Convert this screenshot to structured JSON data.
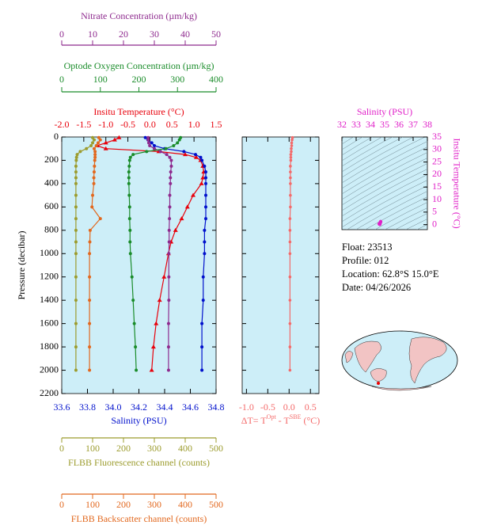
{
  "chart_data": [
    {
      "type": "line",
      "ylabel": "Pressure (decibar)",
      "ylim": [
        0,
        2200
      ],
      "y_inverted": true,
      "yticks": [
        0,
        200,
        400,
        600,
        800,
        1000,
        1200,
        1400,
        1600,
        1800,
        2000,
        2200
      ],
      "y": [
        5,
        25,
        50,
        75,
        100,
        125,
        150,
        175,
        200,
        250,
        300,
        350,
        400,
        500,
        600,
        700,
        800,
        900,
        1000,
        1200,
        1400,
        1600,
        1800,
        2000
      ],
      "background": "#cdeef8",
      "series": [
        {
          "label": "Insitu Temperature (°C)",
          "color": "#e8000b",
          "marker": "triangle",
          "axis_position": "top",
          "xlim": [
            -2,
            1.5
          ],
          "xticks": [
            {
              "value": -2,
              "label": "-2.0"
            },
            -1.5,
            {
              "value": -1,
              "label": "-1.0"
            },
            -0.5,
            {
              "value": 0,
              "label": "0.0"
            },
            0.5,
            {
              "value": 1,
              "label": "1.0"
            },
            1.5
          ],
          "values": [
            -0.7,
            -0.8,
            -1.0,
            -1.2,
            -1.0,
            0.2,
            0.8,
            1.05,
            1.15,
            1.2,
            1.22,
            1.2,
            1.17,
            0.98,
            0.85,
            0.72,
            0.58,
            0.48,
            0.42,
            0.32,
            0.22,
            0.14,
            0.08,
            0.04
          ]
        },
        {
          "label": "Salinity (PSU)",
          "color": "#0010cc",
          "marker": "circle",
          "axis_position": "bottom",
          "xlim": [
            33.6,
            34.8
          ],
          "xticks": [
            33.6,
            33.8,
            {
              "value": 34,
              "label": "34.0"
            },
            34.2,
            34.4,
            34.6,
            34.8
          ],
          "values": [
            34.25,
            34.27,
            34.3,
            34.32,
            34.4,
            34.55,
            34.64,
            34.68,
            34.69,
            34.71,
            34.72,
            34.72,
            34.72,
            34.72,
            34.72,
            34.72,
            34.71,
            34.71,
            34.71,
            34.7,
            34.7,
            34.69,
            34.69,
            34.69
          ]
        },
        {
          "label": "Nitrate Concentration (µm/kg)",
          "color": "#8e2a8e",
          "marker": "circle",
          "axis_position": "top",
          "xlim": [
            0,
            50
          ],
          "xticks": [
            0,
            10,
            20,
            30,
            40,
            50
          ],
          "values": [
            28,
            28,
            28.2,
            28.5,
            30,
            32,
            34,
            35,
            35.5,
            35.5,
            35.3,
            35.2,
            35.2,
            35,
            35,
            34.9,
            34.8,
            34.8,
            34.7,
            34.7,
            34.7,
            34.6,
            34.6,
            34.6
          ]
        },
        {
          "label": "Optode Oxygen Concentration (µm/kg)",
          "color": "#1a8c2a",
          "marker": "circle",
          "axis_position": "top",
          "xlim": [
            0,
            400
          ],
          "xticks": [
            0,
            100,
            200,
            300,
            400
          ],
          "values": [
            308,
            305,
            300,
            290,
            270,
            220,
            185,
            178,
            176,
            175,
            174,
            174,
            174,
            175,
            176,
            176,
            177,
            177,
            178,
            182,
            185,
            188,
            191,
            193
          ]
        },
        {
          "label": "FLBB Fluorescence channel (counts)",
          "color": "#9c9c2e",
          "marker": "circle",
          "axis_position": "bottom",
          "xlim": [
            0,
            500
          ],
          "xticks": [
            0,
            100,
            200,
            300,
            400,
            500
          ],
          "values": [
            100,
            105,
            100,
            95,
            80,
            60,
            50,
            48,
            47,
            46,
            46,
            46,
            46,
            46,
            46,
            46,
            46,
            46,
            46,
            46,
            46,
            46,
            46,
            46
          ]
        },
        {
          "label": "FLBB Backscatter channel (counts)",
          "color": "#e2681e",
          "marker": "circle",
          "axis_position": "bottom",
          "xlim": [
            0,
            500
          ],
          "xticks": [
            0,
            100,
            200,
            300,
            400,
            500
          ],
          "values": [
            120,
            125,
            118,
            112,
            105,
            108,
            108,
            108,
            107,
            106,
            105,
            104,
            104,
            100,
            98,
            125,
            92,
            91,
            90,
            90,
            90,
            90,
            90,
            90
          ]
        }
      ]
    },
    {
      "type": "line",
      "xlabel": {
        "prefix": "ΔT= T",
        "sup1": "Opt",
        "mid": " - T",
        "sup2": "SBE",
        "suffix": " (°C)"
      },
      "color": "#f46a6a",
      "background": "#cdeef8",
      "xlim": [
        -1.1,
        0.7
      ],
      "xticks": [
        {
          "value": -1,
          "label": "-1.0"
        },
        -0.5,
        {
          "value": 0,
          "label": "0.0"
        },
        0.5
      ],
      "ylim": [
        0,
        2200
      ],
      "yticks": [
        0,
        200,
        400,
        600,
        800,
        1000,
        1200,
        1400,
        1600,
        1800,
        2000,
        2200
      ],
      "y": [
        5,
        25,
        50,
        75,
        100,
        125,
        150,
        175,
        200,
        250,
        300,
        350,
        400,
        500,
        600,
        700,
        800,
        900,
        1000,
        1200,
        1400,
        1600,
        1800,
        2000
      ],
      "values": [
        0.08,
        0.07,
        0.06,
        0.06,
        0.05,
        0.05,
        0.04,
        0.04,
        0.04,
        0.03,
        0.03,
        0.03,
        0.03,
        0.03,
        0.03,
        0.02,
        0.02,
        0.02,
        0.02,
        0.02,
        0.02,
        0.02,
        0.02,
        0.02
      ]
    },
    {
      "type": "scatter",
      "xlabel": "Salinity (PSU)",
      "ylabel": "Insitu Temperature (°C)",
      "color": "#e020c8",
      "background": "#cdeef8",
      "xlim": [
        32,
        38
      ],
      "xticks": [
        32,
        33,
        34,
        35,
        36,
        37,
        38
      ],
      "ylim": [
        -2,
        35
      ],
      "yticks": [
        0,
        5,
        10,
        15,
        20,
        25,
        30,
        35
      ],
      "x": [
        34.62,
        34.68,
        34.7,
        34.72,
        34.66
      ],
      "values": [
        0.3,
        0.6,
        0.9,
        1.2,
        0.1
      ]
    }
  ],
  "float_info": [
    "Float:  23513",
    "Profile:  012",
    "Location:  62.8°S  15.0°E",
    "Date:  04/26/2026"
  ]
}
